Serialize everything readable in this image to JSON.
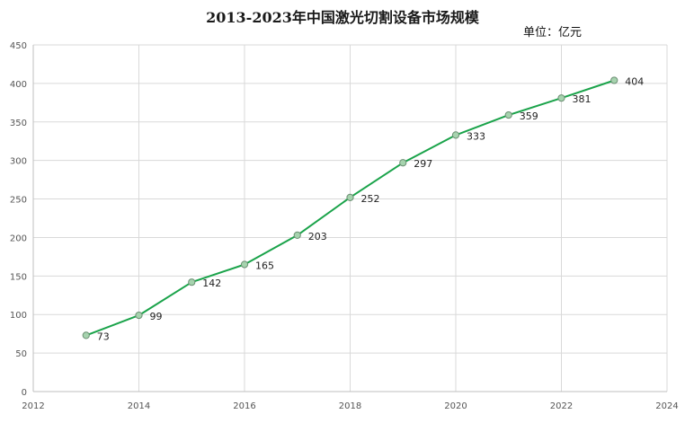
{
  "chart_data": {
    "type": "line",
    "title": "2013-2023年中国激光切割设备市场规模",
    "unit_label": "单位：亿元",
    "x": [
      2013,
      2014,
      2015,
      2016,
      2017,
      2018,
      2019,
      2020,
      2021,
      2022,
      2023
    ],
    "series": [
      {
        "values": [
          73,
          99,
          142,
          165,
          203,
          252,
          297,
          333,
          359,
          381,
          404
        ]
      }
    ],
    "data_labels": [
      "73",
      "99",
      "142",
      "165",
      "203",
      "252",
      "297",
      "333",
      "359",
      "381",
      "404"
    ],
    "x_ticks": [
      "2012",
      "2014",
      "2016",
      "2018",
      "2020",
      "2022",
      "2024"
    ],
    "y_ticks": [
      "0",
      "50",
      "100",
      "150",
      "200",
      "250",
      "300",
      "350",
      "400",
      "450"
    ],
    "xlim": [
      2012,
      2024
    ],
    "ylim": [
      0,
      450
    ],
    "grid": true,
    "line_color": "#1aa34a",
    "marker_fill": "#a6d3ae",
    "marker_stroke": "#6b8f73"
  }
}
